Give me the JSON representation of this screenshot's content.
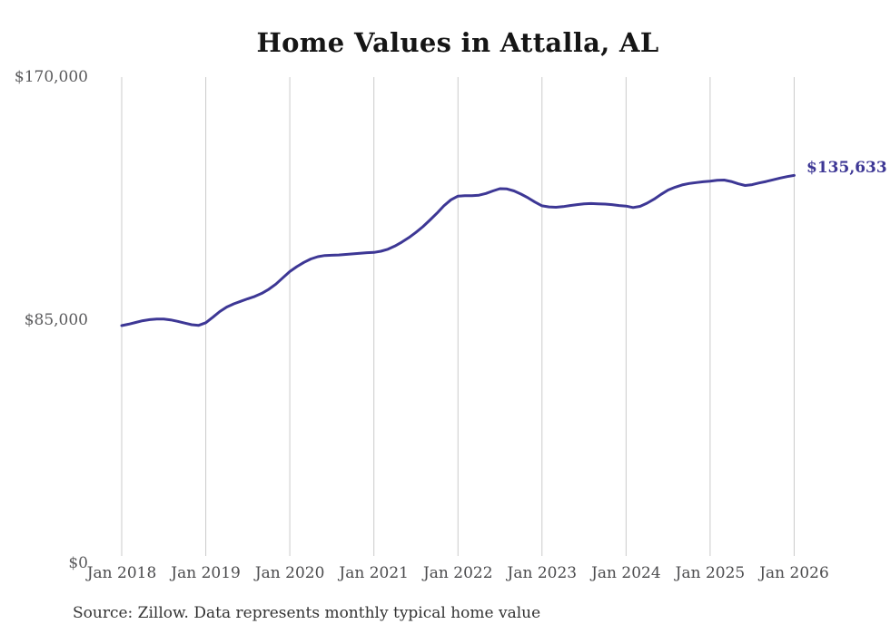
{
  "page": {
    "title": "Home Values in Attalla, AL",
    "source_note": "Source: Zillow. Data represents monthly typical home value"
  },
  "chart_data": {
    "type": "line",
    "title": "Home Values in Attalla, AL",
    "unit": "USD",
    "frequency": "monthly",
    "x_start": "Jan 2018",
    "x_end": "Jan 2026",
    "x_tick_labels": [
      "Jan 2018",
      "Jan 2019",
      "Jan 2020",
      "Jan 2021",
      "Jan 2022",
      "Jan 2023",
      "Jan 2024",
      "Jan 2025",
      "Jan 2026"
    ],
    "y_ticks": [
      {
        "label": "$170,000",
        "value": 170000
      },
      {
        "label": "$85,000",
        "value": 85000
      },
      {
        "label": "$0",
        "value": 0
      }
    ],
    "y_axis_range": [
      0,
      170000
    ],
    "grid": "vertical-only",
    "legend": "none",
    "end_label": "$135,633",
    "final_value": 135633,
    "line_color": "#3d3795",
    "gridline_color": "#cbcbcb",
    "series": [
      {
        "name": "Typical home value",
        "monthly_values": [
          83100,
          83600,
          84200,
          84800,
          85200,
          85400,
          85400,
          85100,
          84600,
          84000,
          83400,
          83200,
          84100,
          86000,
          88000,
          89600,
          90700,
          91600,
          92500,
          93300,
          94400,
          95800,
          97600,
          99800,
          102000,
          103700,
          105200,
          106400,
          107200,
          107600,
          107700,
          107800,
          108000,
          108200,
          108400,
          108600,
          108700,
          109100,
          109800,
          110900,
          112300,
          113900,
          115700,
          117700,
          120000,
          122400,
          125000,
          127100,
          128400,
          128500,
          128500,
          128700,
          129300,
          130200,
          131000,
          130900,
          130200,
          129100,
          127800,
          126300,
          125000,
          124600,
          124500,
          124700,
          125100,
          125400,
          125700,
          125800,
          125700,
          125600,
          125400,
          125100,
          124900,
          124400,
          124800,
          125900,
          127300,
          129000,
          130500,
          131500,
          132300,
          132800,
          133100,
          133400,
          133600,
          133900,
          134000,
          133500,
          132700,
          132100,
          132400,
          133000,
          133500,
          134100,
          134700,
          135200,
          135633
        ]
      }
    ]
  }
}
